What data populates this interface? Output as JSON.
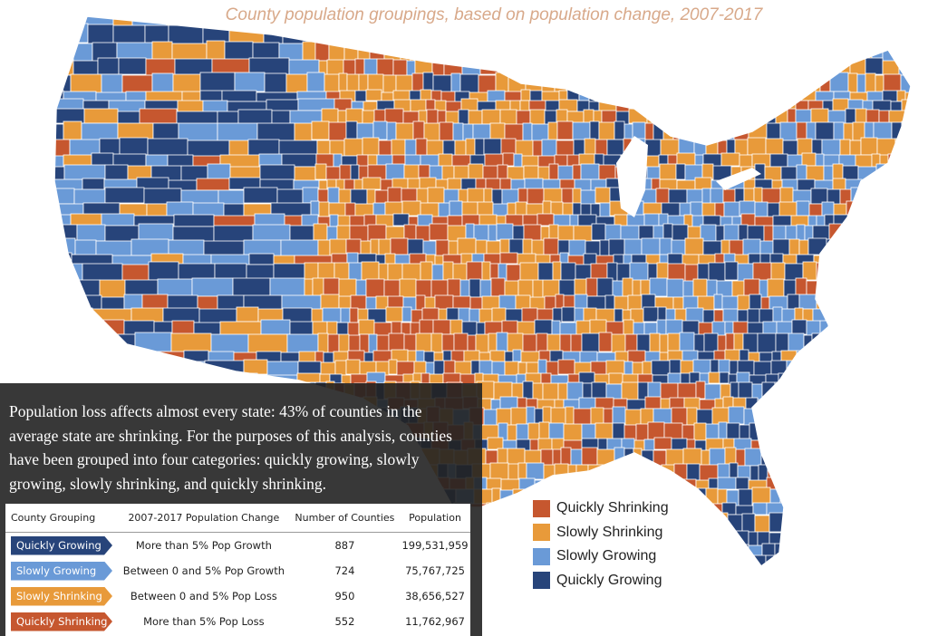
{
  "title": "County population groupings, based on population change, 2007-2017",
  "colors": {
    "quickly_shrinking": "#c6572f",
    "slowly_shrinking": "#e89a3a",
    "slowly_growing": "#6a9ad7",
    "quickly_growing": "#27447a",
    "border": "#ffffff"
  },
  "overlay_text": "Population loss affects almost every state: 43% of counties in the average state are shrinking. For the  purposes of this analysis, counties have been grouped into four categories: quickly growing, slowly growing, slowly shrinking, and quickly shrinking.",
  "table": {
    "headers": [
      "County Grouping",
      "2007-2017 Population Change",
      "Number of Counties",
      "Population"
    ],
    "rows": [
      {
        "group": "Quickly Growing",
        "color": "#27447a",
        "change": "More than 5% Pop Growth",
        "count": "887",
        "population": "199,531,959"
      },
      {
        "group": "Slowly Growing",
        "color": "#6a9ad7",
        "change": "Between 0 and 5% Pop Growth",
        "count": "724",
        "population": "75,767,725"
      },
      {
        "group": "Slowly Shrinking",
        "color": "#e89a3a",
        "change": "Between 0 and 5% Pop Loss",
        "count": "950",
        "population": "38,656,527"
      },
      {
        "group": "Quickly Shrinking",
        "color": "#c6572f",
        "change": "More than 5% Pop Loss",
        "count": "552",
        "population": "11,762,967"
      }
    ]
  },
  "legend": [
    {
      "label": "Quickly Shrinking",
      "color": "#c6572f"
    },
    {
      "label": "Slowly Shrinking",
      "color": "#e89a3a"
    },
    {
      "label": "Slowly Growing",
      "color": "#6a9ad7"
    },
    {
      "label": "Quickly Growing",
      "color": "#27447a"
    }
  ]
}
